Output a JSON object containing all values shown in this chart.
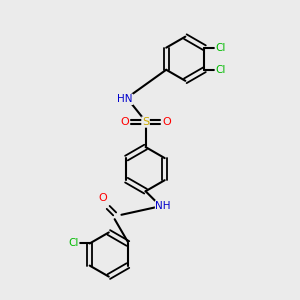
{
  "bg_color": "#ebebeb",
  "atom_colors": {
    "N": "#0000cc",
    "O": "#ff0000",
    "S": "#ccaa00",
    "Cl": "#00bb00"
  },
  "bond_color": "#000000",
  "figsize": [
    3.0,
    3.0
  ],
  "dpi": 100,
  "xlim": [
    0,
    10
  ],
  "ylim": [
    0,
    10
  ]
}
